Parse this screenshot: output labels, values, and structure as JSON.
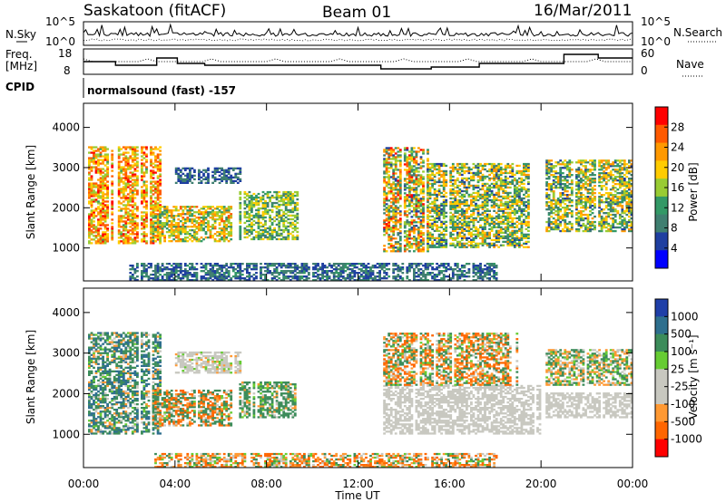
{
  "header": {
    "station": "Saskatoon (fitACF)",
    "beam": "Beam 01",
    "date": "16/Mar/2011"
  },
  "top_panels": {
    "nsky_label": "N.Sky",
    "nsearch_label": "N.Search",
    "noise_ticks_left": [
      "10^5",
      "10^0"
    ],
    "noise_ticks_right": [
      "10^5",
      "10^0"
    ],
    "freq_label_line1": "Freq.",
    "freq_label_line2": "[MHz]",
    "freq_ticks": [
      "18",
      "8"
    ],
    "nave_ticks": [
      "60",
      "0"
    ],
    "nave_label": "Nave",
    "cpid_label": "CPID",
    "cpid_text": "normalsound (fast) -157"
  },
  "axes": {
    "ylabel": "Slant Range [km]",
    "yticks": [
      "4000",
      "3000",
      "2000",
      "1000"
    ],
    "xlabel": "Time UT",
    "xticks": [
      "00:00",
      "04:00",
      "08:00",
      "12:00",
      "16:00",
      "20:00",
      "00:00"
    ]
  },
  "power_colorbar": {
    "label": "Power [dB]",
    "ticks": [
      "28",
      "24",
      "20",
      "16",
      "12",
      "8",
      "4"
    ],
    "colors": [
      "#ff0000",
      "#ff5a00",
      "#ff9900",
      "#ffcc00",
      "#99cc33",
      "#339966",
      "#3f7f70",
      "#1f3fa0",
      "#0000ff"
    ]
  },
  "velocity_colorbar": {
    "label": "Velocity [m s⁻¹]",
    "ticks": [
      "1000",
      "500",
      "100",
      "25",
      "-25",
      "-100",
      "-500",
      "-1000"
    ],
    "colors": [
      "#1f3fa8",
      "#2e6f8e",
      "#3c8c5a",
      "#66cc33",
      "#c8c8c0",
      "#c8c8c0",
      "#ff9933",
      "#ff6600",
      "#ff0000"
    ]
  },
  "chart_data": [
    {
      "type": "heatmap",
      "name": "power",
      "x_range_hours": [
        0,
        24
      ],
      "ylim": [
        180,
        4600
      ],
      "ylabel": "Slant Range [km]",
      "xlabel": "Time UT",
      "regions": [
        {
          "t": [
            0.2,
            3.4
          ],
          "r": [
            1100,
            3500
          ],
          "v": [
            14,
            30
          ]
        },
        {
          "t": [
            3.0,
            6.4
          ],
          "r": [
            1150,
            2050
          ],
          "v": [
            10,
            26
          ]
        },
        {
          "t": [
            4.0,
            6.8
          ],
          "r": [
            2600,
            3000
          ],
          "v": [
            4,
            10
          ]
        },
        {
          "t": [
            6.8,
            9.3
          ],
          "r": [
            1200,
            2400
          ],
          "v": [
            8,
            20
          ]
        },
        {
          "t": [
            13.1,
            15.0
          ],
          "r": [
            900,
            3500
          ],
          "v": [
            6,
            30
          ]
        },
        {
          "t": [
            15.0,
            19.5
          ],
          "r": [
            1000,
            3100
          ],
          "v": [
            6,
            24
          ]
        },
        {
          "t": [
            20.2,
            24.0
          ],
          "r": [
            1400,
            3200
          ],
          "v": [
            6,
            24
          ]
        },
        {
          "t": [
            2.0,
            18.0
          ],
          "r": [
            180,
            600
          ],
          "v": [
            4,
            12
          ]
        }
      ]
    },
    {
      "type": "heatmap",
      "name": "velocity",
      "x_range_hours": [
        0,
        24
      ],
      "ylim": [
        180,
        4600
      ],
      "ylabel": "Slant Range [km]",
      "xlabel": "Time UT",
      "regions": [
        {
          "t": [
            0.2,
            3.4
          ],
          "r": [
            1000,
            3500
          ],
          "v": [
            -100,
            500
          ]
        },
        {
          "t": [
            3.0,
            6.4
          ],
          "r": [
            1200,
            2100
          ],
          "v": [
            -300,
            300
          ]
        },
        {
          "t": [
            4.0,
            6.8
          ],
          "r": [
            2500,
            3000
          ],
          "v": [
            -30,
            30
          ]
        },
        {
          "t": [
            6.8,
            9.3
          ],
          "r": [
            1400,
            2300
          ],
          "v": [
            -80,
            300
          ]
        },
        {
          "t": [
            13.1,
            20.0
          ],
          "r": [
            1000,
            2200
          ],
          "v": [
            -25,
            25
          ]
        },
        {
          "t": [
            13.1,
            19.0
          ],
          "r": [
            2200,
            3500
          ],
          "v": [
            -200,
            150
          ]
        },
        {
          "t": [
            20.2,
            24.0
          ],
          "r": [
            1400,
            2000
          ],
          "v": [
            -25,
            25
          ]
        },
        {
          "t": [
            20.2,
            24.0
          ],
          "r": [
            2200,
            3100
          ],
          "v": [
            -100,
            150
          ]
        },
        {
          "t": [
            3.0,
            18.0
          ],
          "r": [
            180,
            500
          ],
          "v": [
            -200,
            100
          ]
        }
      ]
    }
  ]
}
